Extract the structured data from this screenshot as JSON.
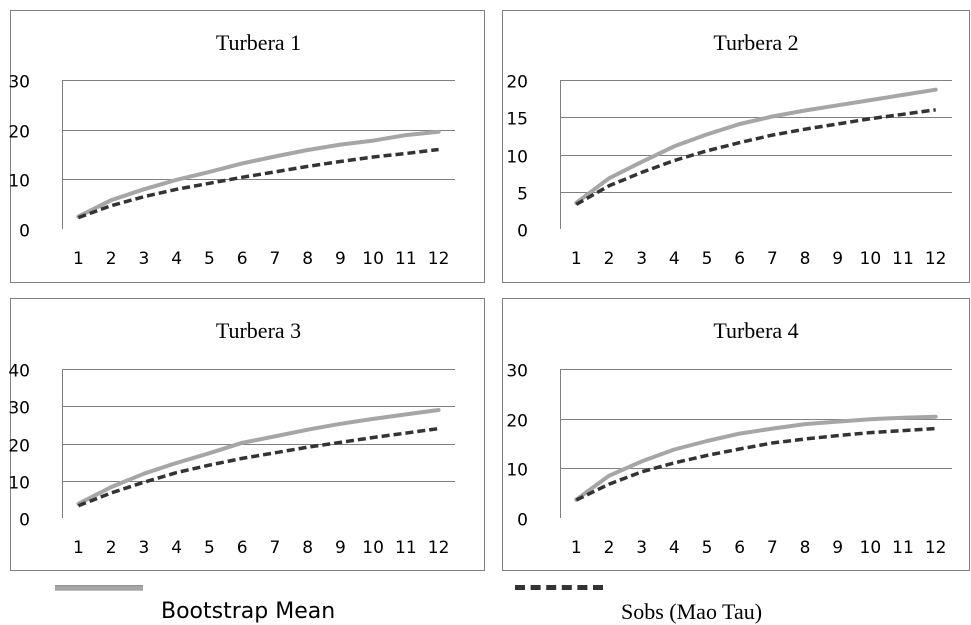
{
  "chart_data": [
    {
      "type": "line",
      "title": "Turbera 1",
      "categories": [
        "1",
        "2",
        "3",
        "4",
        "5",
        "6",
        "7",
        "8",
        "9",
        "10",
        "11",
        "12"
      ],
      "ylim": [
        0,
        30
      ],
      "yticks": [
        0,
        10,
        20,
        30
      ],
      "grid": true,
      "series": [
        {
          "name": "Bootstrap Mean",
          "values": [
            2.5,
            5.8,
            8.0,
            9.9,
            11.5,
            13.2,
            14.6,
            15.9,
            17.0,
            17.8,
            18.9,
            19.6
          ]
        },
        {
          "name": "Sobs (Mao Tau)",
          "values": [
            2.3,
            4.7,
            6.5,
            8.0,
            9.2,
            10.4,
            11.5,
            12.6,
            13.6,
            14.5,
            15.2,
            16.0
          ]
        }
      ]
    },
    {
      "type": "line",
      "title": "Turbera 2",
      "categories": [
        "1",
        "2",
        "3",
        "4",
        "5",
        "6",
        "7",
        "8",
        "9",
        "10",
        "11",
        "12"
      ],
      "ylim": [
        0,
        20
      ],
      "yticks": [
        0,
        5,
        10,
        15,
        20
      ],
      "grid": true,
      "series": [
        {
          "name": "Bootstrap Mean",
          "values": [
            3.5,
            6.8,
            9.0,
            11.1,
            12.7,
            14.1,
            15.1,
            15.9,
            16.6,
            17.3,
            18.0,
            18.7
          ]
        },
        {
          "name": "Sobs (Mao Tau)",
          "values": [
            3.3,
            5.8,
            7.6,
            9.2,
            10.5,
            11.6,
            12.6,
            13.4,
            14.1,
            14.8,
            15.4,
            16.0
          ]
        }
      ]
    },
    {
      "type": "line",
      "title": "Turbera 3",
      "categories": [
        "1",
        "2",
        "3",
        "4",
        "5",
        "6",
        "7",
        "8",
        "9",
        "10",
        "11",
        "12"
      ],
      "ylim": [
        0,
        40
      ],
      "yticks": [
        0,
        10,
        20,
        30,
        40
      ],
      "grid": true,
      "series": [
        {
          "name": "Bootstrap Mean",
          "values": [
            3.8,
            8.3,
            11.9,
            14.8,
            17.4,
            20.2,
            21.9,
            23.7,
            25.3,
            26.6,
            27.8,
            29.0
          ]
        },
        {
          "name": "Sobs (Mao Tau)",
          "values": [
            3.3,
            6.7,
            9.6,
            12.2,
            14.2,
            16.0,
            17.5,
            19.0,
            20.3,
            21.6,
            22.8,
            24.0
          ]
        }
      ]
    },
    {
      "type": "line",
      "title": "Turbera 4",
      "categories": [
        "1",
        "2",
        "3",
        "4",
        "5",
        "6",
        "7",
        "8",
        "9",
        "10",
        "11",
        "12"
      ],
      "ylim": [
        0,
        30
      ],
      "yticks": [
        0,
        10,
        20,
        30
      ],
      "grid": true,
      "series": [
        {
          "name": "Bootstrap Mean",
          "values": [
            3.7,
            8.5,
            11.4,
            13.8,
            15.5,
            17.0,
            18.0,
            18.9,
            19.4,
            19.9,
            20.2,
            20.4
          ]
        },
        {
          "name": "Sobs (Mao Tau)",
          "values": [
            3.6,
            6.8,
            9.3,
            11.1,
            12.6,
            13.9,
            15.1,
            15.9,
            16.6,
            17.2,
            17.6,
            18.0
          ]
        }
      ]
    }
  ],
  "legend": {
    "bootstrap_label": "Bootstrap Mean",
    "sobs_label": "Sobs (Mao Tau)"
  },
  "colors": {
    "bootstrap": "#a6a6a6",
    "sobs": "#333333",
    "grid": "#808080",
    "frame": "#808080"
  }
}
